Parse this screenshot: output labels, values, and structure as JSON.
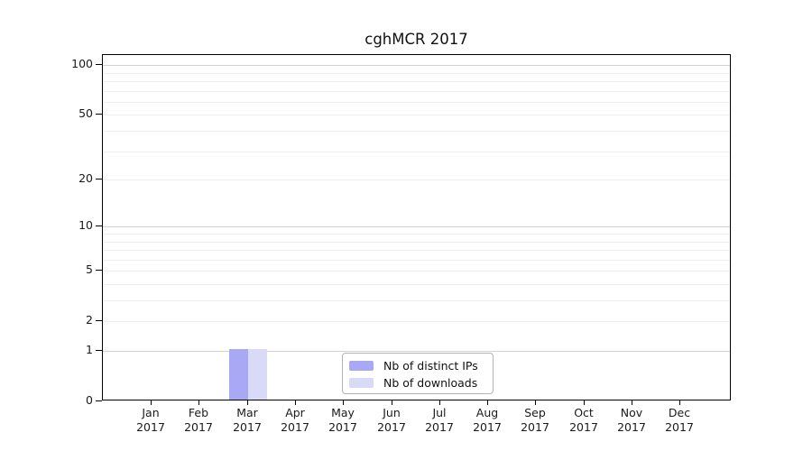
{
  "chart_data": {
    "type": "bar",
    "title": "cghMCR 2017",
    "categories": [
      "Jan 2017",
      "Feb 2017",
      "Mar 2017",
      "Apr 2017",
      "May 2017",
      "Jun 2017",
      "Jul 2017",
      "Aug 2017",
      "Sep 2017",
      "Oct 2017",
      "Nov 2017",
      "Dec 2017"
    ],
    "series": [
      {
        "name": "Nb of distinct IPs",
        "color": "#a8a8f4",
        "values": [
          0,
          0,
          1,
          0,
          0,
          0,
          0,
          0,
          0,
          0,
          0,
          0
        ]
      },
      {
        "name": "Nb of downloads",
        "color": "#d9d9f8",
        "values": [
          0,
          0,
          1,
          0,
          0,
          0,
          0,
          0,
          0,
          0,
          0,
          0
        ]
      }
    ],
    "xlabel": "",
    "ylabel": "",
    "y_scale": "log1p",
    "y_ticks": [
      0,
      1,
      2,
      5,
      10,
      20,
      50,
      100
    ],
    "ylim": [
      0,
      115
    ],
    "grid": "horizontal",
    "gridlines_major": [
      1,
      10,
      100
    ],
    "gridlines_minor": [
      2,
      3,
      4,
      5,
      6,
      7,
      8,
      9,
      20,
      30,
      40,
      50,
      60,
      70,
      80,
      90
    ],
    "legend": {
      "position": "inside-bottom-center",
      "entries": [
        "Nb of distinct IPs",
        "Nb of downloads"
      ]
    },
    "style": {
      "background": "#ffffff",
      "axis_color": "#000000",
      "text_color": "#1a1a1a",
      "grid_major_color": "#d2d2d2",
      "grid_minor_color": "#efefef",
      "legend_border_color": "#b3b3b3"
    }
  }
}
